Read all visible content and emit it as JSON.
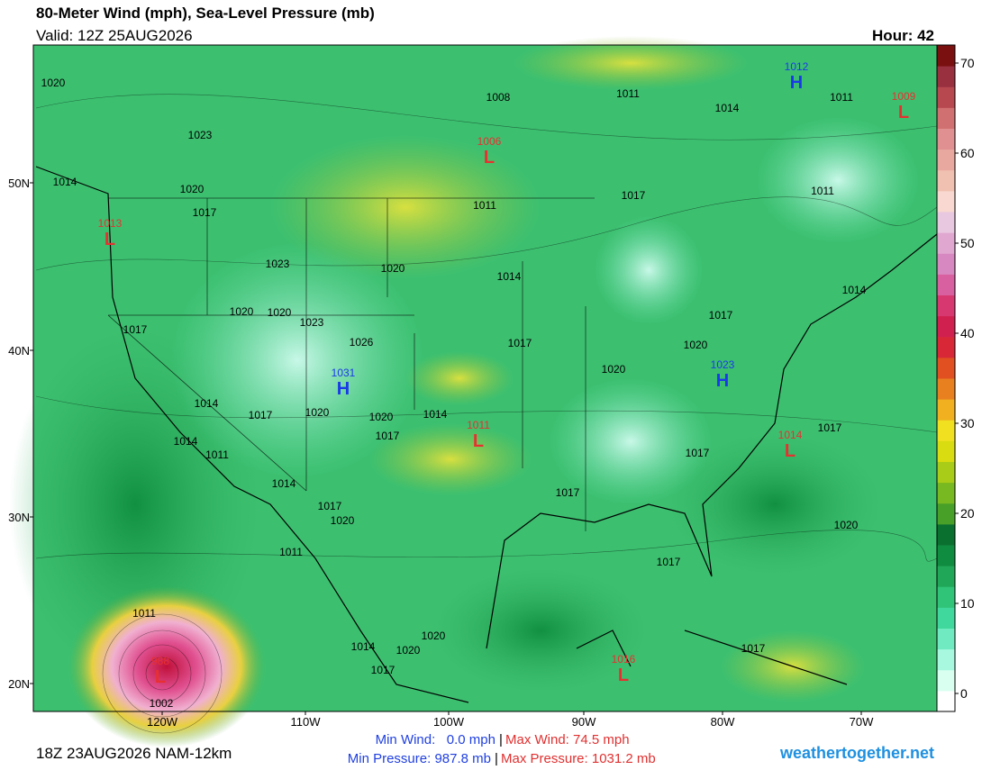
{
  "header": {
    "title": "80-Meter Wind (mph), Sea-Level Pressure (mb)",
    "valid": "Valid: 12Z 25AUG2026",
    "hour": "Hour: 42"
  },
  "map": {
    "latitude_labels": [
      "50N",
      "40N",
      "30N",
      "20N"
    ],
    "longitude_labels": [
      "120W",
      "110W",
      "100W",
      "90W",
      "80W",
      "70W"
    ],
    "pressure_centers": [
      {
        "letter": "H",
        "value": "1012"
      },
      {
        "letter": "L",
        "value": "1009"
      },
      {
        "letter": "L",
        "value": "1006"
      },
      {
        "letter": "L",
        "value": "1013"
      },
      {
        "letter": "H",
        "value": "1031"
      },
      {
        "letter": "H",
        "value": "1023"
      },
      {
        "letter": "L",
        "value": "1011"
      },
      {
        "letter": "L",
        "value": "1014"
      },
      {
        "letter": "L",
        "value": "1016"
      },
      {
        "letter": "L",
        "value": "988"
      }
    ],
    "isobar_labels": [
      "1020",
      "1008",
      "1011",
      "1014",
      "1011",
      "1023",
      "1014",
      "1020",
      "1017",
      "1011",
      "1017",
      "1011",
      "1023",
      "1020",
      "1014",
      "1014",
      "1017",
      "1020",
      "1020",
      "1023",
      "1017",
      "1026",
      "1017",
      "1020",
      "1020",
      "1014",
      "1017",
      "1020",
      "1020",
      "1014",
      "1017",
      "1017",
      "1014",
      "1011",
      "1017",
      "1014",
      "1017",
      "1017",
      "1020",
      "1020",
      "1011",
      "1017",
      "1011",
      "1014",
      "1020",
      "1020",
      "1017",
      "1017",
      "1002"
    ]
  },
  "colorbar": {
    "ticks": [
      0,
      10,
      20,
      30,
      40,
      50,
      60,
      70
    ]
  },
  "footer": {
    "run": "18Z 23AUG2026 NAM-12km",
    "min_wind": "Min Wind:   0.0 mph",
    "separator": "|",
    "max_wind": "Max Wind: 74.5 mph",
    "min_pressure": "Min Pressure: 987.8 mb",
    "max_pressure": "Max Pressure: 1031.2 mb",
    "site": "weathertogether.net"
  }
}
